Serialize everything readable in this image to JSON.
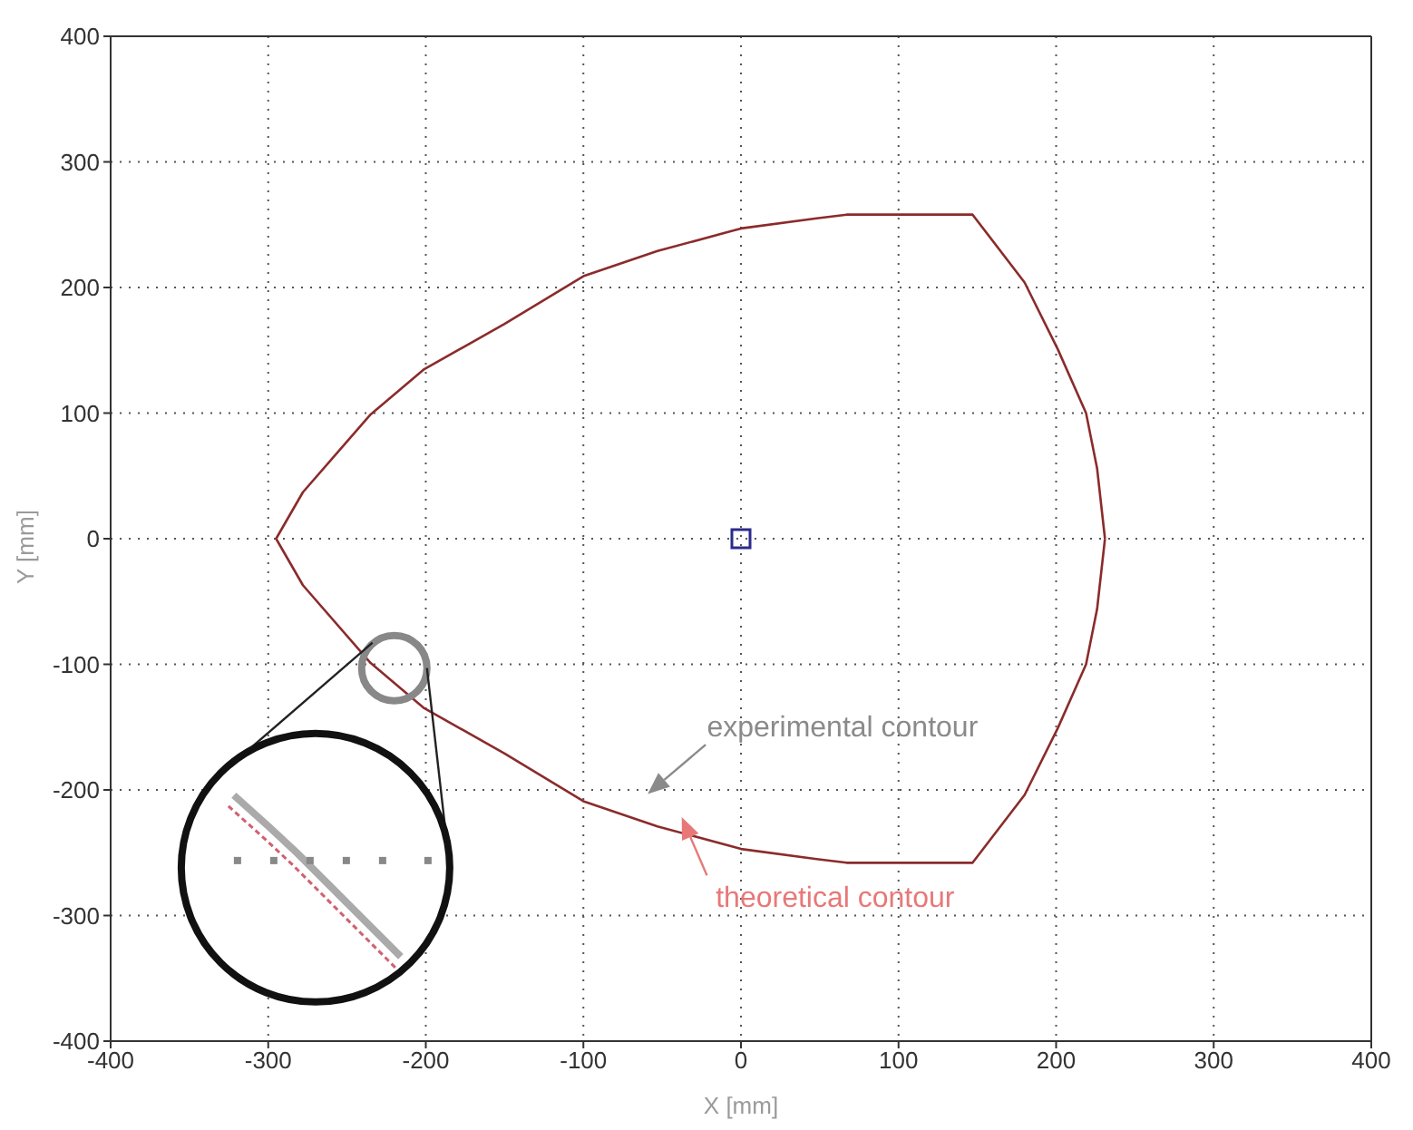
{
  "chart_data": {
    "type": "line",
    "xlabel": "X [mm]",
    "ylabel": "Y [mm]",
    "xlim": [
      -400,
      400
    ],
    "ylim": [
      -400,
      400
    ],
    "xticks": [
      -400,
      -300,
      -200,
      -100,
      0,
      100,
      200,
      300,
      400
    ],
    "yticks": [
      -400,
      -300,
      -200,
      -100,
      0,
      100,
      200,
      300,
      400
    ],
    "grid": true,
    "line_style": "solid",
    "series": [
      {
        "marker": "none",
        "color": "#8b2b2b",
        "x": [
          -295,
          -278,
          -235,
          -201,
          -150,
          -100,
          -53,
          0,
          48,
          67,
          147,
          180,
          201,
          219,
          226,
          231,
          null,
          -295,
          -278,
          -235,
          -201,
          -150,
          -100,
          -53,
          0,
          48,
          67,
          147,
          180,
          201,
          219,
          226,
          231
        ],
        "values": [
          0,
          37,
          99,
          135,
          171,
          209,
          229,
          247,
          255,
          258,
          258,
          204,
          151,
          100,
          56,
          0,
          null,
          0,
          -37,
          -99,
          -135,
          -171,
          -209,
          -229,
          -247,
          -255,
          -258,
          -258,
          -204,
          -151,
          -100,
          -56,
          0
        ]
      },
      {
        "type": "scatter",
        "color": "#2b2b8c",
        "marker": "square",
        "x": [
          0
        ],
        "values": [
          0
        ]
      }
    ],
    "annotations": [
      "experimental contour",
      "theoretical contour"
    ]
  }
}
